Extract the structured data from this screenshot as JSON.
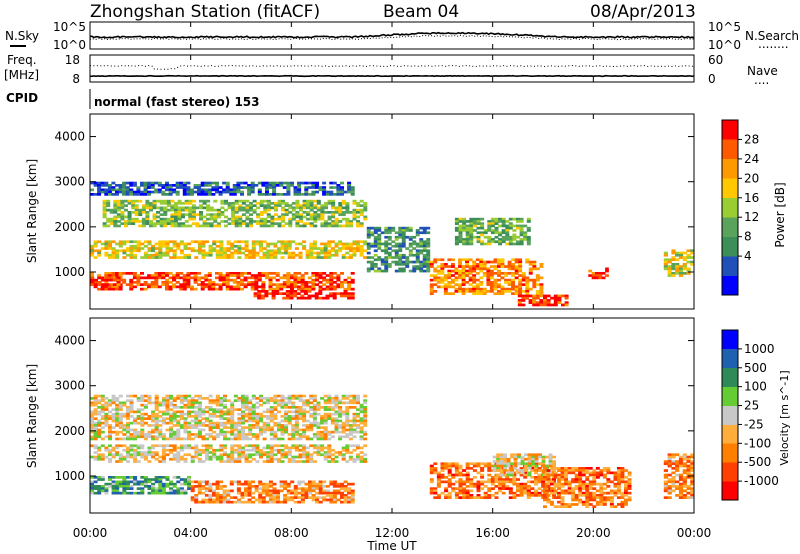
{
  "header": {
    "station": "Zhongshan Station (fitACF)",
    "beam": "Beam 04",
    "date": "08/Apr/2013",
    "cpid_label": "CPID",
    "cpid_value": "normal (fast stereo) 153"
  },
  "noise_panel": {
    "left_label": "N.Sky",
    "right_label": "N.Search",
    "right_dots": "........",
    "left_ticks": [
      "10^5",
      "10^0"
    ],
    "right_ticks": [
      "10^5",
      "10^0"
    ]
  },
  "freq_panel": {
    "left_label_1": "Freq.",
    "left_label_2": "[MHz]",
    "right_label": "Nave",
    "right_dots": "....",
    "left_ticks": [
      "18",
      "8"
    ],
    "right_ticks": [
      "60",
      "0"
    ]
  },
  "colors": {
    "power": [
      "#0000ff",
      "#2050b8",
      "#3d8f5a",
      "#5aa35c",
      "#9acd32",
      "#ffc800",
      "#ff9900",
      "#ff5a00",
      "#ff0000"
    ],
    "velocity": [
      "#ff0000",
      "#ff4000",
      "#ff7f00",
      "#ffae3c",
      "#c8c8c8",
      "#66cc33",
      "#2e8b57",
      "#2060b0",
      "#0000ff"
    ]
  },
  "chart_data": [
    {
      "type": "heatmap",
      "name": "power",
      "xlabel": "",
      "ylabel": "Slant Range [km]",
      "yticks": [
        "4000",
        "3000",
        "2000",
        "1000"
      ],
      "xlim": [
        "00:00",
        "24:00"
      ],
      "ylim": [
        180,
        4500
      ],
      "colorbar": {
        "label": "Power [dB]",
        "ticks": [
          "28",
          "24",
          "20",
          "16",
          "12",
          "8",
          "4"
        ],
        "range": [
          0,
          32
        ]
      },
      "regions": [
        {
          "t0": 0.0,
          "t1": 11.0,
          "r0": 1300,
          "r1": 1700,
          "level": 0.6
        },
        {
          "t0": 0.0,
          "t1": 10.5,
          "r0": 600,
          "r1": 1000,
          "level": 0.85
        },
        {
          "t0": 0.0,
          "t1": 1.2,
          "r0": 700,
          "r1": 900,
          "level": 0.95
        },
        {
          "t0": 0.5,
          "t1": 11.0,
          "r0": 2000,
          "r1": 2600,
          "level": 0.45
        },
        {
          "t0": 0.0,
          "t1": 10.5,
          "r0": 2700,
          "r1": 3000,
          "level": 0.2
        },
        {
          "t0": 6.5,
          "t1": 10.5,
          "r0": 400,
          "r1": 600,
          "level": 0.95
        },
        {
          "t0": 11.0,
          "t1": 13.5,
          "r0": 1000,
          "r1": 2000,
          "level": 0.3
        },
        {
          "t0": 13.5,
          "t1": 18.0,
          "r0": 500,
          "r1": 1300,
          "level": 0.75
        },
        {
          "t0": 14.5,
          "t1": 17.5,
          "r0": 1600,
          "r1": 2200,
          "level": 0.4
        },
        {
          "t0": 17.0,
          "t1": 19.0,
          "r0": 250,
          "r1": 500,
          "level": 0.9
        },
        {
          "t0": 19.8,
          "t1": 20.6,
          "r0": 850,
          "r1": 1100,
          "level": 0.9
        },
        {
          "t0": 22.8,
          "t1": 24.0,
          "r0": 900,
          "r1": 1500,
          "level": 0.55
        }
      ]
    },
    {
      "type": "heatmap",
      "name": "velocity",
      "xlabel": "Time UT",
      "ylabel": "Slant Range [km]",
      "yticks": [
        "4000",
        "3000",
        "2000",
        "1000"
      ],
      "xticks": [
        "00:00",
        "04:00",
        "08:00",
        "12:00",
        "16:00",
        "20:00",
        "00:00"
      ],
      "xlim": [
        "00:00",
        "24:00"
      ],
      "ylim": [
        180,
        4500
      ],
      "colorbar": {
        "label": "Velocity [m s^-1]",
        "ticks": [
          "1000",
          "500",
          "100",
          "25",
          "-25",
          "-100",
          "-500",
          "-1000"
        ],
        "range": [
          -1200,
          1200
        ]
      },
      "regions": [
        {
          "t0": 0.0,
          "t1": 11.0,
          "r0": 1800,
          "r1": 2800,
          "level": 0.45
        },
        {
          "t0": 0.0,
          "t1": 11.0,
          "r0": 1300,
          "r1": 1700,
          "level": 0.45
        },
        {
          "t0": 0.0,
          "t1": 4.0,
          "r0": 600,
          "r1": 1000,
          "level": 0.7
        },
        {
          "t0": 4.0,
          "t1": 10.5,
          "r0": 400,
          "r1": 900,
          "level": 0.3
        },
        {
          "t0": 13.5,
          "t1": 18.5,
          "r0": 500,
          "r1": 1300,
          "level": 0.25
        },
        {
          "t0": 16.0,
          "t1": 18.5,
          "r0": 1000,
          "r1": 1500,
          "level": 0.45
        },
        {
          "t0": 18.0,
          "t1": 21.5,
          "r0": 300,
          "r1": 1200,
          "level": 0.25
        },
        {
          "t0": 22.8,
          "t1": 24.0,
          "r0": 500,
          "r1": 1500,
          "level": 0.3
        }
      ]
    }
  ]
}
